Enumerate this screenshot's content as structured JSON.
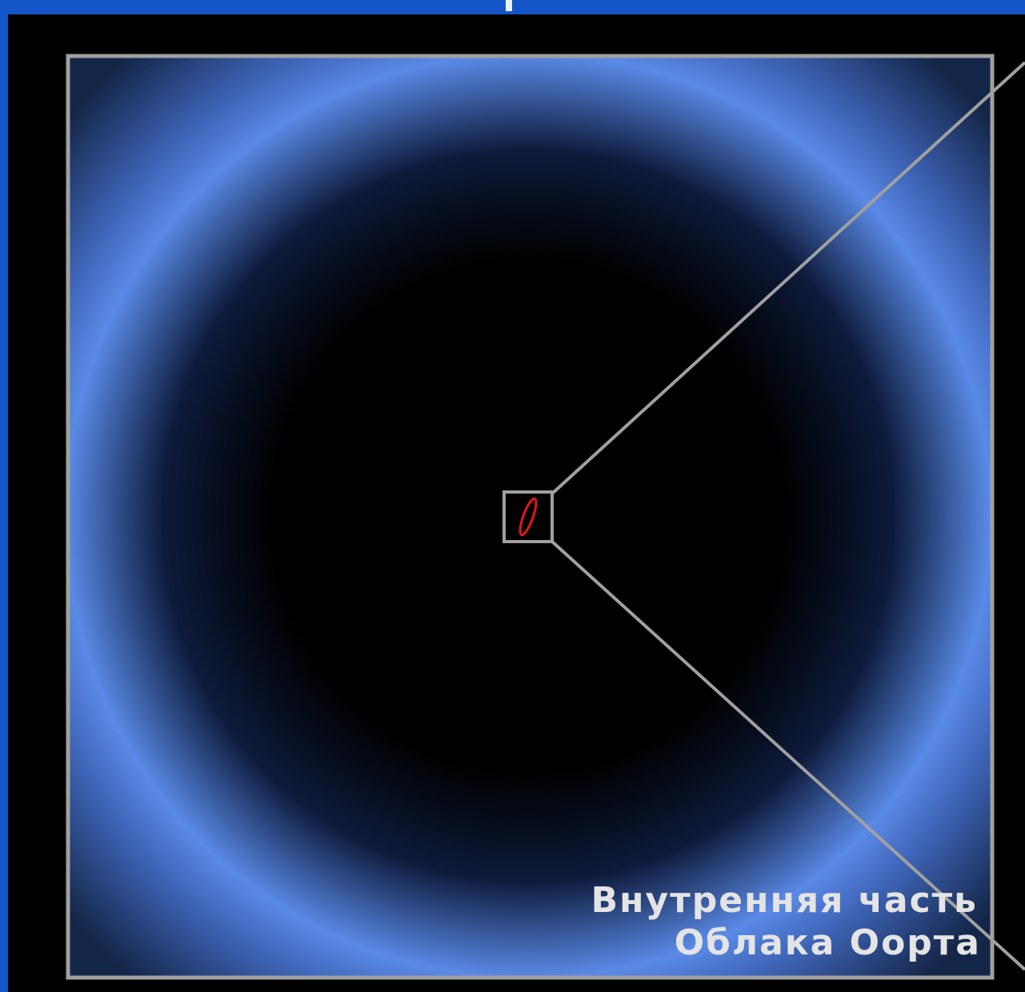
{
  "label": {
    "lines": [
      "Внутренняя часть",
      "Облака Оорта"
    ]
  }
}
